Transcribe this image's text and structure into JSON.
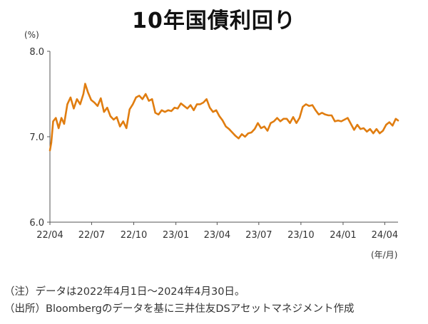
{
  "chart_data": {
    "type": "line",
    "title": "10年国債利回り",
    "y_unit_label": "(%)",
    "x_unit_label": "(年/月)",
    "ylim": [
      6.0,
      8.0
    ],
    "yticks": [
      "8.0",
      "7.0",
      "6.0"
    ],
    "xlim": [
      "2022-04-01",
      "2024-04-30"
    ],
    "x_tick_labels": [
      "22/04",
      "22/07",
      "22/10",
      "23/01",
      "23/04",
      "23/07",
      "23/10",
      "24/01",
      "24/04"
    ],
    "grid": false,
    "series": [
      {
        "color": "#e07d10",
        "x": [
          "2022-04-01",
          "2022-04-04",
          "2022-04-08",
          "2022-04-14",
          "2022-04-20",
          "2022-04-26",
          "2022-05-02",
          "2022-05-09",
          "2022-05-16",
          "2022-05-23",
          "2022-05-30",
          "2022-06-06",
          "2022-06-13",
          "2022-06-17",
          "2022-06-23",
          "2022-06-30",
          "2022-07-07",
          "2022-07-14",
          "2022-07-21",
          "2022-07-28",
          "2022-08-04",
          "2022-08-11",
          "2022-08-18",
          "2022-08-25",
          "2022-09-01",
          "2022-09-08",
          "2022-09-15",
          "2022-09-22",
          "2022-09-29",
          "2022-10-06",
          "2022-10-13",
          "2022-10-20",
          "2022-10-27",
          "2022-11-03",
          "2022-11-10",
          "2022-11-17",
          "2022-11-24",
          "2022-12-01",
          "2022-12-08",
          "2022-12-15",
          "2022-12-22",
          "2022-12-29",
          "2023-01-05",
          "2023-01-12",
          "2023-01-19",
          "2023-01-26",
          "2023-02-02",
          "2023-02-09",
          "2023-02-16",
          "2023-02-23",
          "2023-03-02",
          "2023-03-09",
          "2023-03-16",
          "2023-03-23",
          "2023-03-30",
          "2023-04-06",
          "2023-04-13",
          "2023-04-20",
          "2023-04-27",
          "2023-05-04",
          "2023-05-11",
          "2023-05-18",
          "2023-05-25",
          "2023-06-01",
          "2023-06-08",
          "2023-06-15",
          "2023-06-22",
          "2023-06-29",
          "2023-07-06",
          "2023-07-13",
          "2023-07-20",
          "2023-07-27",
          "2023-08-03",
          "2023-08-10",
          "2023-08-17",
          "2023-08-24",
          "2023-08-31",
          "2023-09-07",
          "2023-09-14",
          "2023-09-21",
          "2023-09-28",
          "2023-10-05",
          "2023-10-12",
          "2023-10-19",
          "2023-10-26",
          "2023-11-02",
          "2023-11-09",
          "2023-11-16",
          "2023-11-23",
          "2023-11-30",
          "2023-12-07",
          "2023-12-14",
          "2023-12-21",
          "2023-12-28",
          "2024-01-04",
          "2024-01-11",
          "2024-01-18",
          "2024-01-25",
          "2024-02-01",
          "2024-02-08",
          "2024-02-15",
          "2024-02-22",
          "2024-02-29",
          "2024-03-07",
          "2024-03-14",
          "2024-03-21",
          "2024-03-28",
          "2024-04-04",
          "2024-04-11",
          "2024-04-18",
          "2024-04-25",
          "2024-04-30"
        ],
        "y": [
          6.84,
          6.93,
          7.18,
          7.22,
          7.1,
          7.22,
          7.15,
          7.38,
          7.46,
          7.33,
          7.44,
          7.38,
          7.5,
          7.62,
          7.52,
          7.43,
          7.4,
          7.36,
          7.45,
          7.29,
          7.34,
          7.24,
          7.2,
          7.23,
          7.12,
          7.18,
          7.1,
          7.32,
          7.38,
          7.46,
          7.48,
          7.44,
          7.5,
          7.42,
          7.44,
          7.28,
          7.26,
          7.31,
          7.29,
          7.31,
          7.3,
          7.34,
          7.33,
          7.39,
          7.36,
          7.33,
          7.37,
          7.31,
          7.38,
          7.38,
          7.4,
          7.44,
          7.34,
          7.29,
          7.31,
          7.24,
          7.19,
          7.12,
          7.09,
          7.05,
          7.01,
          6.98,
          7.03,
          7.0,
          7.04,
          7.05,
          7.09,
          7.16,
          7.1,
          7.12,
          7.07,
          7.16,
          7.18,
          7.22,
          7.18,
          7.21,
          7.21,
          7.16,
          7.23,
          7.16,
          7.22,
          7.35,
          7.38,
          7.36,
          7.37,
          7.31,
          7.26,
          7.28,
          7.26,
          7.25,
          7.25,
          7.18,
          7.19,
          7.18,
          7.2,
          7.22,
          7.15,
          7.08,
          7.14,
          7.09,
          7.1,
          7.06,
          7.09,
          7.04,
          7.09,
          7.04,
          7.07,
          7.14,
          7.17,
          7.13,
          7.21,
          7.19
        ]
      }
    ]
  },
  "notes": {
    "line1": "（注）データは2022年4月1日～2024年4月30日。",
    "line2": "（出所）Bloombergのデータを基に三井住友DSアセットマネジメント作成"
  }
}
